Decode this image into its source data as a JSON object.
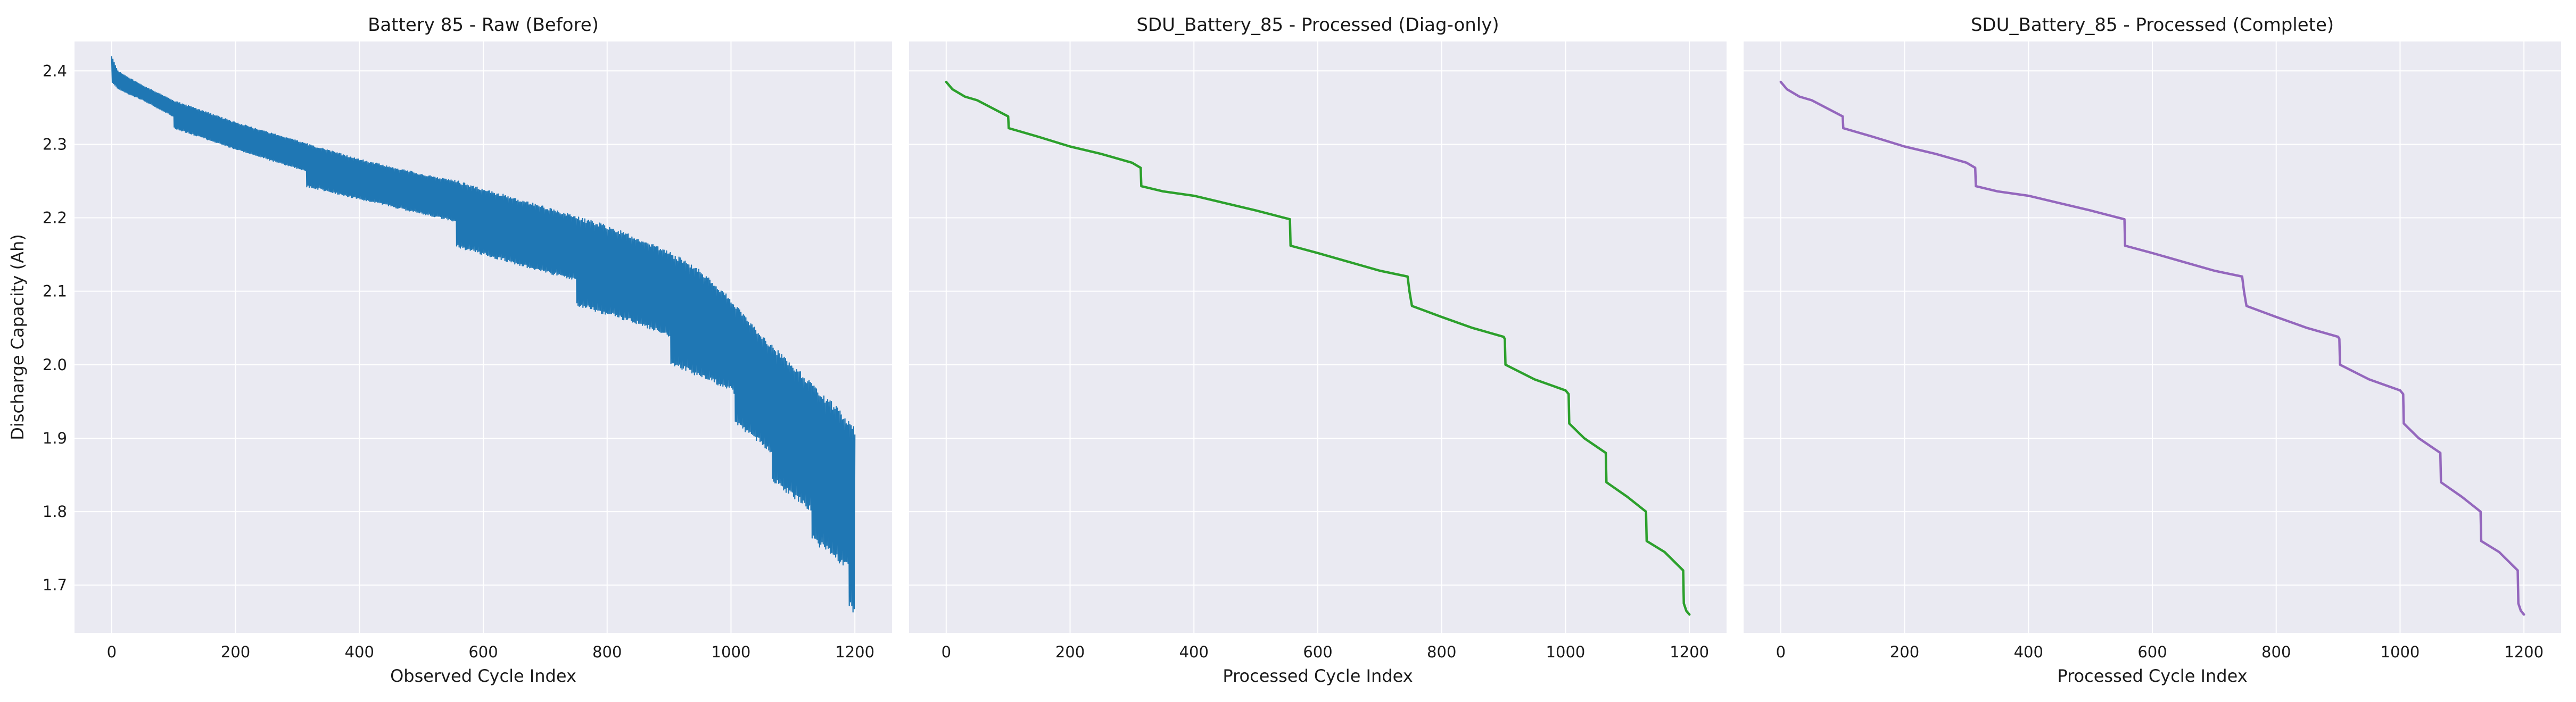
{
  "figure": {
    "ylabel": "Discharge Capacity (Ah)",
    "shared_y_ticks": [
      "2.4",
      "2.3",
      "2.2",
      "2.1",
      "2.0",
      "1.9",
      "1.8",
      "1.7"
    ],
    "x_ticks": [
      "0",
      "200",
      "400",
      "600",
      "800",
      "1000",
      "1200"
    ]
  },
  "chart_data": [
    {
      "type": "line",
      "title": "Battery 85 - Raw (Before)",
      "xlabel": "Observed Cycle Index",
      "ylabel": "Discharge Capacity (Ah)",
      "xlim": [
        -60,
        1260
      ],
      "ylim": [
        1.635,
        2.44
      ],
      "grid": true,
      "color": "#1f77b4",
      "style": "raw-oscillating",
      "series": [
        {
          "label": "upper envelope",
          "x": [
            0,
            10,
            50,
            100,
            200,
            300,
            400,
            500,
            560,
            600,
            700,
            800,
            900,
            950,
            1000,
            1050,
            1100,
            1150,
            1180,
            1200
          ],
          "y": [
            2.42,
            2.4,
            2.38,
            2.36,
            2.33,
            2.305,
            2.28,
            2.26,
            2.25,
            2.24,
            2.215,
            2.19,
            2.155,
            2.13,
            2.09,
            2.04,
            2.0,
            1.96,
            1.935,
            1.915
          ]
        },
        {
          "label": "lower envelope",
          "x": [
            0,
            10,
            50,
            99,
            100,
            200,
            314,
            315,
            400,
            500,
            555,
            556,
            700,
            749,
            750,
            850,
            902,
            903,
            1000,
            1005,
            1006,
            1065,
            1066,
            1130,
            1131,
            1190,
            1191,
            1200
          ],
          "y": [
            2.385,
            2.375,
            2.36,
            2.338,
            2.322,
            2.293,
            2.263,
            2.242,
            2.225,
            2.205,
            2.195,
            2.16,
            2.125,
            2.115,
            2.08,
            2.055,
            2.038,
            2.0,
            1.965,
            1.96,
            1.92,
            1.88,
            1.84,
            1.8,
            1.76,
            1.72,
            1.67,
            1.655
          ]
        }
      ]
    },
    {
      "type": "line",
      "title": "SDU_Battery_85 - Processed (Diag-only)",
      "xlabel": "Processed Cycle Index",
      "xlim": [
        -60,
        1260
      ],
      "ylim": [
        1.635,
        2.44
      ],
      "grid": true,
      "color": "#2ca02c",
      "series": [
        {
          "x": [
            0,
            10,
            30,
            50,
            100,
            101,
            150,
            200,
            250,
            300,
            314,
            315,
            350,
            400,
            450,
            500,
            555,
            556,
            600,
            650,
            700,
            745,
            748,
            751,
            752,
            800,
            850,
            900,
            902,
            903,
            950,
            1000,
            1005,
            1006,
            1030,
            1065,
            1066,
            1100,
            1130,
            1131,
            1160,
            1190,
            1191,
            1195,
            1200
          ],
          "y": [
            2.385,
            2.375,
            2.365,
            2.36,
            2.338,
            2.322,
            2.31,
            2.297,
            2.287,
            2.275,
            2.268,
            2.243,
            2.236,
            2.23,
            2.22,
            2.21,
            2.198,
            2.162,
            2.152,
            2.14,
            2.128,
            2.12,
            2.1,
            2.085,
            2.08,
            2.065,
            2.05,
            2.038,
            2.035,
            2.0,
            1.98,
            1.965,
            1.96,
            1.92,
            1.9,
            1.88,
            1.84,
            1.82,
            1.8,
            1.76,
            1.745,
            1.72,
            1.675,
            1.665,
            1.66
          ]
        }
      ]
    },
    {
      "type": "line",
      "title": "SDU_Battery_85 - Processed (Complete)",
      "xlabel": "Processed Cycle Index",
      "xlim": [
        -60,
        1260
      ],
      "ylim": [
        1.635,
        2.44
      ],
      "grid": true,
      "color": "#9467bd",
      "series": [
        {
          "x": [
            0,
            10,
            30,
            50,
            100,
            101,
            150,
            200,
            250,
            300,
            314,
            315,
            350,
            400,
            450,
            500,
            555,
            556,
            600,
            650,
            700,
            745,
            748,
            751,
            752,
            800,
            850,
            900,
            902,
            903,
            950,
            1000,
            1005,
            1006,
            1030,
            1065,
            1066,
            1100,
            1130,
            1131,
            1160,
            1190,
            1191,
            1195,
            1200
          ],
          "y": [
            2.385,
            2.375,
            2.365,
            2.36,
            2.338,
            2.322,
            2.31,
            2.297,
            2.287,
            2.275,
            2.268,
            2.243,
            2.236,
            2.23,
            2.22,
            2.21,
            2.198,
            2.162,
            2.152,
            2.14,
            2.128,
            2.12,
            2.1,
            2.085,
            2.08,
            2.065,
            2.05,
            2.038,
            2.035,
            2.0,
            1.98,
            1.965,
            1.96,
            1.92,
            1.9,
            1.88,
            1.84,
            1.82,
            1.8,
            1.76,
            1.745,
            1.72,
            1.675,
            1.665,
            1.66
          ]
        }
      ]
    }
  ],
  "colors": {
    "axes_bg": "#eaeaf2",
    "grid": "#ffffff"
  }
}
